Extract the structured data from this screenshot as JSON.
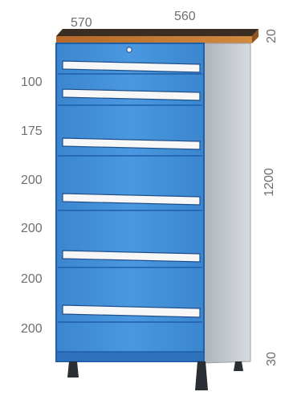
{
  "dimensions": {
    "depth": "570",
    "width": "560",
    "worktop": "20",
    "height": "1200",
    "plinth": "30"
  },
  "drawer_heights": [
    "100",
    "175",
    "200",
    "200",
    "200",
    "200"
  ],
  "colors": {
    "cabinet_blue": "#3f8fd8",
    "cabinet_outline": "#1f5fa8",
    "side_panel": "#c7ccd2",
    "worktop": "#c9782e",
    "handle": "#f7f7f7",
    "label_text": "#6f6f6f"
  }
}
